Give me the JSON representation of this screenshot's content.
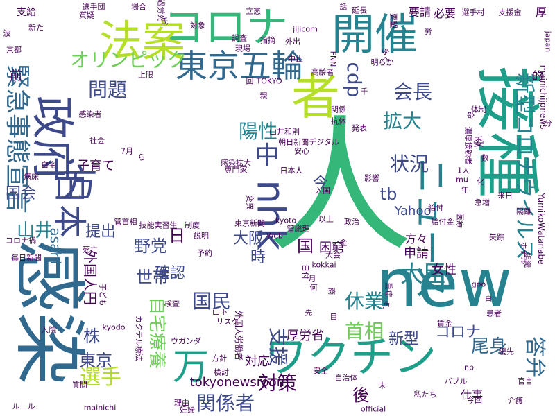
{
  "background": "#ffffff",
  "palette": [
    "#440154",
    "#482878",
    "#3e4989",
    "#31688e",
    "#26828e",
    "#1f9e89",
    "#35b779",
    "#6ece58",
    "#b5de2b",
    "#fde725"
  ],
  "words": [
    {
      "text": "感染",
      "color": "#31688e"
    },
    {
      "text": "人",
      "color": "#35b779"
    },
    {
      "text": "接種",
      "color": "#1f9e89"
    },
    {
      "text": "new",
      "color": "#26828e"
    },
    {
      "text": "者",
      "color": "#b5de2b"
    },
    {
      "text": "政府",
      "color": "#3e4989"
    },
    {
      "text": "コロナ",
      "color": "#35b779"
    },
    {
      "text": "法案",
      "color": "#b5de2b"
    },
    {
      "text": "開催",
      "color": "#26828e"
    },
    {
      "text": "東京五輪",
      "color": "#31688e"
    },
    {
      "text": "ワクチン",
      "color": "#1f9e89"
    },
    {
      "text": "万",
      "color": "#1f9e89"
    },
    {
      "text": "nhk",
      "color": "#3e4989"
    },
    {
      "text": "中",
      "color": "#3e4989"
    },
    {
      "text": "ニュース",
      "color": "#26828e"
    },
    {
      "text": "日本",
      "color": "#3e4989"
    },
    {
      "text": "緊急事態宣言",
      "color": "#31688e"
    },
    {
      "text": "新型コロナウイルス",
      "color": "#26828e"
    },
    {
      "text": "オリンピック",
      "color": "#6ece58"
    },
    {
      "text": "大臣",
      "color": "#26828e"
    },
    {
      "text": "国民",
      "color": "#3e4989"
    },
    {
      "text": "山井",
      "color": "#26828e"
    },
    {
      "text": "cdp",
      "color": "#3e4989"
    },
    {
      "text": "会長",
      "color": "#3e4989"
    },
    {
      "text": "陽性",
      "color": "#26828e"
    },
    {
      "text": "拡大",
      "color": "#26828e"
    },
    {
      "text": "問題",
      "color": "#3e4989"
    },
    {
      "text": "状況",
      "color": "#3e4989"
    },
    {
      "text": "選手",
      "color": "#b5de2b"
    },
    {
      "text": "休業",
      "color": "#26828e"
    },
    {
      "text": "首相",
      "color": "#6ece58"
    },
    {
      "text": "答弁",
      "color": "#31688e"
    },
    {
      "text": "尾身",
      "color": "#31688e"
    },
    {
      "text": "対策",
      "color": "#440154"
    },
    {
      "text": "関係者",
      "color": "#3e4989"
    },
    {
      "text": "支援",
      "color": "#3e4989"
    },
    {
      "text": "自宅療養",
      "color": "#6ece58"
    },
    {
      "text": "国会",
      "color": "#3e4989"
    },
    {
      "text": "野党",
      "color": "#3e4989"
    },
    {
      "text": "世帯",
      "color": "#3e4989"
    },
    {
      "text": "東京",
      "color": "#3e4989"
    },
    {
      "text": "新型",
      "color": "#3e4989"
    },
    {
      "text": "コロナ",
      "color": "#3e4989"
    },
    {
      "text": "tb",
      "color": "#3e4989"
    },
    {
      "text": "大阪",
      "color": "#3e4989"
    },
    {
      "text": "国",
      "color": "#440154"
    },
    {
      "text": "時",
      "color": "#3e4989"
    },
    {
      "text": "日",
      "color": "#440154"
    },
    {
      "text": "今",
      "color": "#3e4989"
    },
    {
      "text": "株",
      "color": "#3e4989"
    },
    {
      "text": "後",
      "color": "#440154"
    },
    {
      "text": "提出",
      "color": "#3e4989"
    },
    {
      "text": "確認",
      "color": "#3e4989"
    },
    {
      "text": "外国人円",
      "color": "#440154"
    },
    {
      "text": "子育て",
      "color": "#440154"
    },
    {
      "text": "asahi",
      "color": "#31688e"
    },
    {
      "text": "Yahoo",
      "color": "#3e4989"
    },
    {
      "text": "申請",
      "color": "#440154"
    },
    {
      "text": "女性",
      "color": "#440154"
    },
    {
      "text": "困窮",
      "color": "#440154"
    },
    {
      "text": "厚労省",
      "color": "#440154"
    },
    {
      "text": "tokyonewsroom",
      "color": "#440154"
    },
    {
      "text": "要請",
      "color": "#440154"
    },
    {
      "text": "必要",
      "color": "#440154"
    },
    {
      "text": "前",
      "color": "#440154"
    },
    {
      "text": "支給",
      "color": "#440154"
    },
    {
      "text": "的",
      "color": "#440154"
    },
    {
      "text": "方",
      "color": "#3e4989"
    },
    {
      "text": "委",
      "color": "#440154"
    },
    {
      "text": "対応",
      "color": "#440154"
    },
    {
      "text": "仕事",
      "color": "#440154"
    },
    {
      "text": "方々",
      "color": "#440154"
    },
    {
      "text": "厚",
      "color": "#440154"
    },
    {
      "text": "選手村",
      "color": "#440154"
    },
    {
      "text": "支援金",
      "color": "#440154"
    },
    {
      "text": "選手団",
      "color": "#440154"
    },
    {
      "text": "場合",
      "color": "#440154"
    },
    {
      "text": "過労死",
      "color": "#440154"
    },
    {
      "text": "立憲",
      "color": "#440154"
    },
    {
      "text": "話",
      "color": "#440154"
    },
    {
      "text": "延長",
      "color": "#440154"
    },
    {
      "text": "要望",
      "color": "#440154"
    },
    {
      "text": "質疑",
      "color": "#440154"
    },
    {
      "text": "指摘",
      "color": "#440154"
    },
    {
      "text": "対象",
      "color": "#440154"
    },
    {
      "text": "調査",
      "color": "#440154"
    },
    {
      "text": "現場",
      "color": "#440154"
    },
    {
      "text": "上限",
      "color": "#440154"
    },
    {
      "text": "高齢者",
      "color": "#440154"
    },
    {
      "text": "中止",
      "color": "#440154"
    },
    {
      "text": "外出",
      "color": "#440154"
    },
    {
      "text": "明らか",
      "color": "#440154"
    },
    {
      "text": "多く",
      "color": "#440154"
    },
    {
      "text": "社会",
      "color": "#440154"
    },
    {
      "text": "7月",
      "color": "#440154"
    },
    {
      "text": "感染者",
      "color": "#440154"
    },
    {
      "text": "自宅",
      "color": "#440154"
    },
    {
      "text": "病床",
      "color": "#440154"
    },
    {
      "text": "コロナ禍",
      "color": "#440154"
    },
    {
      "text": "死亡",
      "color": "#440154"
    },
    {
      "text": "毎日新聞",
      "color": "#440154"
    },
    {
      "text": "技能実習生",
      "color": "#440154"
    },
    {
      "text": "管首相",
      "color": "#440154"
    },
    {
      "text": "制度",
      "color": "#440154"
    },
    {
      "text": "東京新聞",
      "color": "#440154"
    },
    {
      "text": "管総理",
      "color": "#440154"
    },
    {
      "text": "専門家",
      "color": "#440154"
    },
    {
      "text": "安心",
      "color": "#440154"
    },
    {
      "text": "朝日新聞デジタル",
      "color": "#440154"
    },
    {
      "text": "山井和則",
      "color": "#440154"
    },
    {
      "text": "関係",
      "color": "#440154"
    },
    {
      "text": "発表",
      "color": "#440154"
    },
    {
      "text": "抗体",
      "color": "#440154"
    },
    {
      "text": "感染拡大",
      "color": "#440154"
    },
    {
      "text": "日本人",
      "color": "#440154"
    },
    {
      "text": "入国",
      "color": "#440154"
    },
    {
      "text": "影響",
      "color": "#440154"
    },
    {
      "text": "体制",
      "color": "#440154"
    },
    {
      "text": "急増",
      "color": "#440154"
    },
    {
      "text": "来日",
      "color": "#440154"
    },
    {
      "text": "隔離",
      "color": "#440154"
    },
    {
      "text": "給付",
      "color": "#440154"
    },
    {
      "text": "給付金",
      "color": "#440154"
    },
    {
      "text": "政治",
      "color": "#440154"
    },
    {
      "text": "以上",
      "color": "#440154"
    },
    {
      "text": "kyoto",
      "color": "#440154"
    },
    {
      "text": "Web",
      "color": "#440154"
    },
    {
      "text": "kokkai",
      "color": "#440154"
    },
    {
      "text": "大会",
      "color": "#440154"
    },
    {
      "text": "商",
      "color": "#440154"
    },
    {
      "text": "ホテル",
      "color": "#440154"
    },
    {
      "text": "検査",
      "color": "#440154"
    },
    {
      "text": "リスク",
      "color": "#440154"
    },
    {
      "text": "山下",
      "color": "#440154"
    },
    {
      "text": "ウガンダ",
      "color": "#440154"
    },
    {
      "text": "カクテル療法",
      "color": "#440154"
    },
    {
      "text": "外国人労働者",
      "color": "#440154"
    },
    {
      "text": "方針",
      "color": "#440154"
    },
    {
      "text": "検討",
      "color": "#440154"
    },
    {
      "text": "安全",
      "color": "#440154"
    },
    {
      "text": "np",
      "color": "#440154"
    },
    {
      "text": "バブル",
      "color": "#440154"
    },
    {
      "text": "官言",
      "color": "#440154"
    },
    {
      "text": "自治体",
      "color": "#440154"
    },
    {
      "text": "末",
      "color": "#440154"
    },
    {
      "text": "私たち",
      "color": "#440154"
    },
    {
      "text": "今回",
      "color": "#440154"
    },
    {
      "text": "介護",
      "color": "#440154"
    },
    {
      "text": "official",
      "color": "#440154"
    },
    {
      "text": "mainichi",
      "color": "#440154"
    },
    {
      "text": "理由",
      "color": "#440154"
    },
    {
      "text": "妊婦",
      "color": "#440154"
    },
    {
      "text": "ルール",
      "color": "#440154"
    },
    {
      "text": "質問",
      "color": "#440154"
    },
    {
      "text": "入院",
      "color": "#440154"
    },
    {
      "text": "kyodo",
      "color": "#440154"
    },
    {
      "text": "子ども",
      "color": "#440154"
    },
    {
      "text": "先",
      "color": "#440154"
    },
    {
      "text": "目",
      "color": "#440154"
    },
    {
      "text": "声",
      "color": "#440154"
    },
    {
      "text": "重症",
      "color": "#440154"
    },
    {
      "text": "賃金",
      "color": "#440154"
    },
    {
      "text": "goo",
      "color": "#440154"
    },
    {
      "text": "百",
      "color": "#440154"
    },
    {
      "text": "患者",
      "color": "#440154"
    },
    {
      "text": "優先",
      "color": "#440154"
    },
    {
      "text": "組織",
      "color": "#440154"
    },
    {
      "text": "YumikoWatanabe",
      "color": "#440154"
    },
    {
      "text": "mainichijpnews",
      "color": "#440154"
    },
    {
      "text": "japan",
      "color": "#440154"
    },
    {
      "text": "jijicom",
      "color": "#440154"
    },
    {
      "text": "FNN",
      "color": "#440154"
    },
    {
      "text": "TOKYO",
      "color": "#440154"
    },
    {
      "text": "失踪",
      "color": "#440154"
    },
    {
      "text": "濃厚接触者",
      "color": "#440154"
    },
    {
      "text": "命",
      "color": "#440154"
    },
    {
      "text": "数",
      "color": "#440154"
    },
    {
      "text": "1人",
      "color": "#440154"
    },
    {
      "text": "mu",
      "color": "#440154"
    },
    {
      "text": "年",
      "color": "#440154"
    },
    {
      "text": "化",
      "color": "#440154"
    },
    {
      "text": "医療",
      "color": "#440154"
    },
    {
      "text": "分",
      "color": "#440154"
    },
    {
      "text": "京都",
      "color": "#440154"
    },
    {
      "text": "波",
      "color": "#440154"
    },
    {
      "text": "新た",
      "color": "#440154"
    },
    {
      "text": "労",
      "color": "#440154"
    },
    {
      "text": "千",
      "color": "#440154"
    },
    {
      "text": "金",
      "color": "#440154"
    },
    {
      "text": "予約",
      "color": "#440154"
    },
    {
      "text": "説明",
      "color": "#440154"
    },
    {
      "text": "変異",
      "color": "#440154"
    },
    {
      "text": "親",
      "color": "#440154"
    },
    {
      "text": "回",
      "color": "#440154"
    },
    {
      "text": "ら",
      "color": "#440154"
    },
    {
      "text": "氏",
      "color": "#440154"
    },
    {
      "text": "月",
      "color": "#440154"
    },
    {
      "text": "何",
      "color": "#440154"
    },
    {
      "text": "日付",
      "color": "#440154"
    }
  ]
}
